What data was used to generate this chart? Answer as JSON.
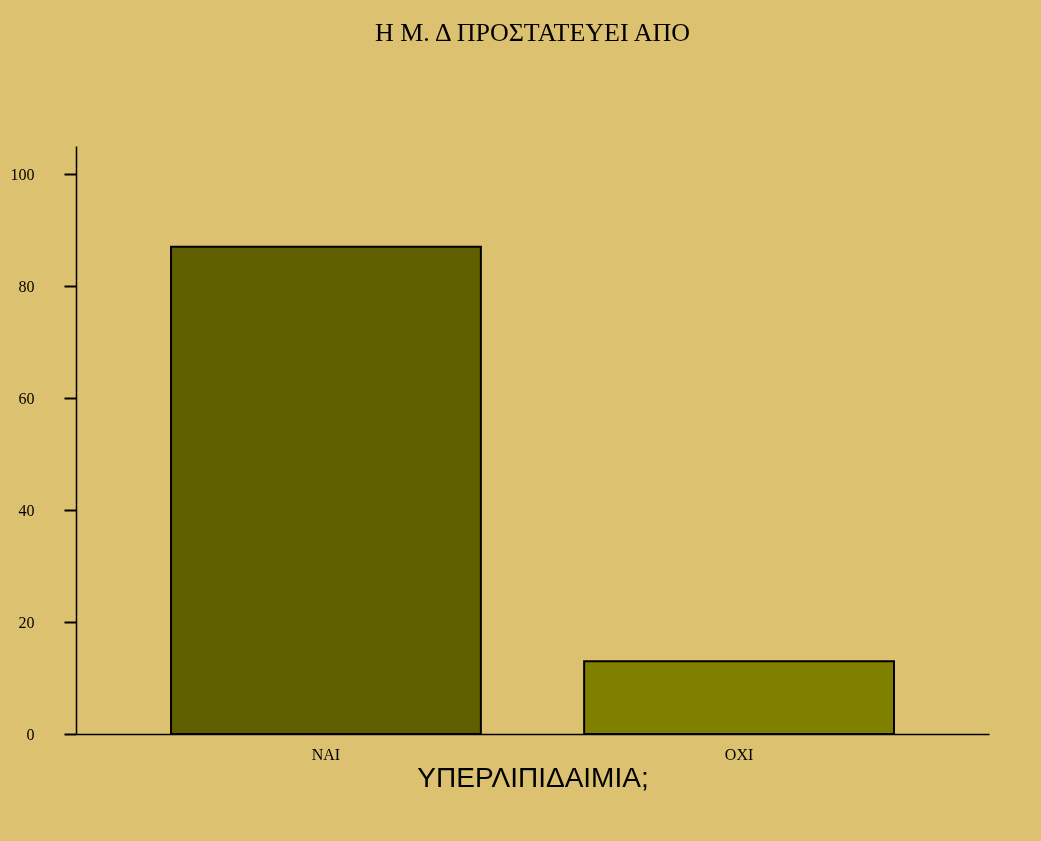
{
  "chart_data": {
    "type": "bar",
    "title": "Η Μ. Δ ΠΡΟΣΤΑΤΕΥΕΙ ΑΠΟ",
    "xlabel": "ΥΠΕΡΛΙΠΙΔΑΙΜΙΑ;",
    "categories": [
      "ΝΑΙ",
      "ΟΧΙ"
    ],
    "values": [
      87,
      13
    ],
    "colors": [
      "#5f5f00",
      "#808000"
    ],
    "ylim": [
      0,
      105
    ],
    "yticks": [
      0,
      20,
      40,
      60,
      80,
      100
    ],
    "grid": false
  }
}
